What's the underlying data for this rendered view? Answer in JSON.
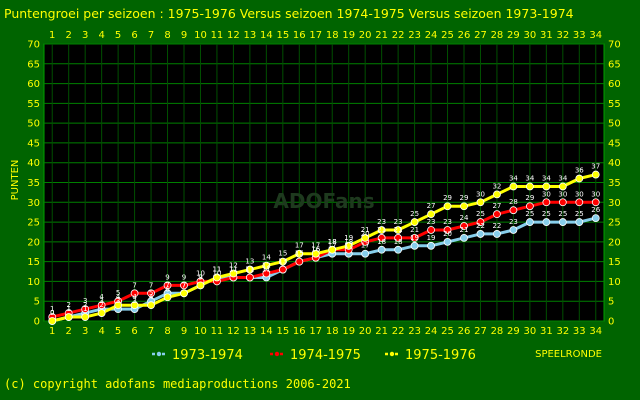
{
  "chart_data": {
    "type": "line",
    "title": "Puntengroei per seizoen : 1975-1976 Versus seizoen 1974-1975 Versus seizoen 1973-1974",
    "xlabel": "SPEELRONDE",
    "ylabel": "PUNTEN",
    "x": [
      1,
      2,
      3,
      4,
      5,
      6,
      7,
      8,
      9,
      10,
      11,
      12,
      13,
      14,
      15,
      16,
      17,
      18,
      19,
      20,
      21,
      22,
      23,
      24,
      25,
      26,
      27,
      28,
      29,
      30,
      31,
      32,
      33,
      34
    ],
    "ylim": [
      0,
      70
    ],
    "yticks": [
      0,
      5,
      10,
      15,
      20,
      25,
      30,
      35,
      40,
      45,
      50,
      55,
      60,
      65,
      70
    ],
    "grid": true,
    "series": [
      {
        "name": "1973-1974",
        "color": "#87ceeb",
        "values": [
          0,
          1,
          2,
          3,
          3,
          3,
          5,
          7,
          7,
          9,
          11,
          11,
          11,
          11,
          13,
          15,
          16,
          17,
          17,
          17,
          18,
          18,
          19,
          19,
          20,
          21,
          22,
          22,
          23,
          25,
          25,
          25,
          25,
          26
        ]
      },
      {
        "name": "1974-1975",
        "color": "#ff0000",
        "values": [
          1,
          2,
          3,
          4,
          5,
          7,
          7,
          9,
          9,
          10,
          10,
          11,
          11,
          12,
          13,
          15,
          16,
          18,
          18,
          20,
          21,
          21,
          21,
          23,
          23,
          24,
          25,
          27,
          28,
          29,
          30,
          30,
          30,
          30
        ]
      },
      {
        "name": "1975-1976",
        "color": "#ffff00",
        "values": [
          0,
          1,
          1,
          2,
          4,
          4,
          4,
          6,
          7,
          9,
          11,
          12,
          13,
          14,
          15,
          17,
          17,
          18,
          19,
          21,
          23,
          23,
          25,
          27,
          29,
          29,
          30,
          32,
          34,
          34,
          34,
          34,
          36,
          37
        ]
      }
    ]
  },
  "copyright": "(c) copyright adofans mediaproductions 2006-2021",
  "watermark": "ADOFans"
}
